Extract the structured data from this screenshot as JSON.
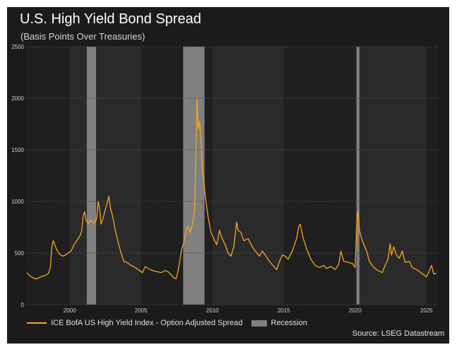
{
  "chart_data": {
    "type": "line",
    "title": "U.S. High Yield Bond Spread",
    "subtitle": "(Basis Points Over Treasuries)",
    "xlabel": "",
    "ylabel": "",
    "xlim": [
      1997.0,
      2025.8
    ],
    "ylim": [
      0,
      2500
    ],
    "y_ticks": [
      "0",
      "500",
      "1000",
      "1500",
      "2000",
      "2500"
    ],
    "x_ticks": [
      "2000",
      "2005",
      "2010",
      "2015",
      "2020",
      "2025"
    ],
    "grid": true,
    "legend_position": "bottom-left",
    "series": [
      {
        "name": "ICE BofA US High Yield Index - Option Adjusted Spread",
        "color": "#f5a623",
        "points": [
          [
            1997.0,
            310
          ],
          [
            1997.15,
            290
          ],
          [
            1997.3,
            270
          ],
          [
            1997.5,
            255
          ],
          [
            1997.7,
            250
          ],
          [
            1997.9,
            265
          ],
          [
            1998.1,
            275
          ],
          [
            1998.3,
            285
          ],
          [
            1998.5,
            300
          ],
          [
            1998.65,
            360
          ],
          [
            1998.75,
            560
          ],
          [
            1998.85,
            620
          ],
          [
            1998.95,
            580
          ],
          [
            1999.1,
            530
          ],
          [
            1999.3,
            490
          ],
          [
            1999.5,
            470
          ],
          [
            1999.7,
            480
          ],
          [
            1999.9,
            500
          ],
          [
            2000.1,
            520
          ],
          [
            2000.3,
            580
          ],
          [
            2000.5,
            620
          ],
          [
            2000.7,
            660
          ],
          [
            2000.85,
            720
          ],
          [
            2000.95,
            860
          ],
          [
            2001.05,
            900
          ],
          [
            2001.15,
            820
          ],
          [
            2001.3,
            780
          ],
          [
            2001.5,
            820
          ],
          [
            2001.7,
            790
          ],
          [
            2001.8,
            800
          ],
          [
            2001.9,
            840
          ],
          [
            2002.0,
            1000
          ],
          [
            2002.1,
            920
          ],
          [
            2002.2,
            780
          ],
          [
            2002.35,
            840
          ],
          [
            2002.5,
            920
          ],
          [
            2002.65,
            1000
          ],
          [
            2002.75,
            1050
          ],
          [
            2002.85,
            940
          ],
          [
            2003.0,
            860
          ],
          [
            2003.2,
            720
          ],
          [
            2003.4,
            600
          ],
          [
            2003.6,
            500
          ],
          [
            2003.8,
            420
          ],
          [
            2004.0,
            410
          ],
          [
            2004.3,
            380
          ],
          [
            2004.6,
            360
          ],
          [
            2004.9,
            330
          ],
          [
            2005.1,
            310
          ],
          [
            2005.3,
            370
          ],
          [
            2005.5,
            350
          ],
          [
            2005.8,
            330
          ],
          [
            2006.1,
            320
          ],
          [
            2006.4,
            310
          ],
          [
            2006.7,
            330
          ],
          [
            2006.9,
            320
          ],
          [
            2007.1,
            290
          ],
          [
            2007.3,
            260
          ],
          [
            2007.45,
            250
          ],
          [
            2007.6,
            330
          ],
          [
            2007.7,
            410
          ],
          [
            2007.85,
            540
          ],
          [
            2008.0,
            600
          ],
          [
            2008.1,
            680
          ],
          [
            2008.2,
            740
          ],
          [
            2008.3,
            760
          ],
          [
            2008.45,
            700
          ],
          [
            2008.6,
            780
          ],
          [
            2008.75,
            900
          ],
          [
            2008.85,
            1500
          ],
          [
            2008.92,
            2000
          ],
          [
            2009.0,
            1700
          ],
          [
            2009.1,
            1780
          ],
          [
            2009.2,
            1600
          ],
          [
            2009.3,
            1300
          ],
          [
            2009.4,
            1200
          ],
          [
            2009.5,
            1050
          ],
          [
            2009.7,
            850
          ],
          [
            2009.9,
            700
          ],
          [
            2010.1,
            640
          ],
          [
            2010.3,
            580
          ],
          [
            2010.5,
            720
          ],
          [
            2010.65,
            650
          ],
          [
            2010.9,
            580
          ],
          [
            2011.1,
            500
          ],
          [
            2011.3,
            470
          ],
          [
            2011.5,
            560
          ],
          [
            2011.7,
            800
          ],
          [
            2011.8,
            720
          ],
          [
            2012.0,
            700
          ],
          [
            2012.2,
            620
          ],
          [
            2012.5,
            640
          ],
          [
            2012.8,
            560
          ],
          [
            2013.0,
            520
          ],
          [
            2013.3,
            470
          ],
          [
            2013.5,
            520
          ],
          [
            2013.8,
            460
          ],
          [
            2014.0,
            420
          ],
          [
            2014.3,
            370
          ],
          [
            2014.5,
            340
          ],
          [
            2014.7,
            420
          ],
          [
            2014.9,
            480
          ],
          [
            2015.1,
            470
          ],
          [
            2015.3,
            440
          ],
          [
            2015.6,
            520
          ],
          [
            2015.9,
            640
          ],
          [
            2016.05,
            760
          ],
          [
            2016.15,
            780
          ],
          [
            2016.35,
            650
          ],
          [
            2016.6,
            540
          ],
          [
            2016.9,
            440
          ],
          [
            2017.2,
            380
          ],
          [
            2017.5,
            360
          ],
          [
            2017.8,
            380
          ],
          [
            2018.0,
            350
          ],
          [
            2018.3,
            370
          ],
          [
            2018.6,
            340
          ],
          [
            2018.85,
            390
          ],
          [
            2019.0,
            520
          ],
          [
            2019.2,
            420
          ],
          [
            2019.5,
            410
          ],
          [
            2019.8,
            400
          ],
          [
            2020.0,
            360
          ],
          [
            2020.15,
            880
          ],
          [
            2020.2,
            900
          ],
          [
            2020.3,
            720
          ],
          [
            2020.5,
            620
          ],
          [
            2020.8,
            520
          ],
          [
            2021.0,
            420
          ],
          [
            2021.3,
            360
          ],
          [
            2021.6,
            330
          ],
          [
            2021.9,
            310
          ],
          [
            2022.1,
            380
          ],
          [
            2022.3,
            440
          ],
          [
            2022.45,
            590
          ],
          [
            2022.55,
            480
          ],
          [
            2022.7,
            560
          ],
          [
            2022.9,
            480
          ],
          [
            2023.1,
            450
          ],
          [
            2023.3,
            520
          ],
          [
            2023.5,
            410
          ],
          [
            2023.8,
            420
          ],
          [
            2024.0,
            360
          ],
          [
            2024.3,
            340
          ],
          [
            2024.6,
            310
          ],
          [
            2024.9,
            280
          ],
          [
            2025.0,
            270
          ],
          [
            2025.2,
            330
          ],
          [
            2025.35,
            380
          ],
          [
            2025.5,
            300
          ],
          [
            2025.7,
            300
          ]
        ]
      }
    ],
    "recessions": [
      {
        "name": "Recession",
        "start": 2001.2,
        "end": 2001.85
      },
      {
        "name": "Recession",
        "start": 2007.95,
        "end": 2009.45
      },
      {
        "name": "Recession",
        "start": 2020.1,
        "end": 2020.3
      }
    ]
  },
  "legend": {
    "series_label": "ICE BofA US High Yield Index - Option Adjusted Spread",
    "recession_label": "Recession"
  },
  "source": "Source: LSEG Datastream",
  "colors": {
    "background": "#1b1b1b",
    "plot_band_dark": "#1f1f1f",
    "plot_band_light": "#2a2a2a",
    "line": "#f5a623",
    "recession": "#808080"
  }
}
